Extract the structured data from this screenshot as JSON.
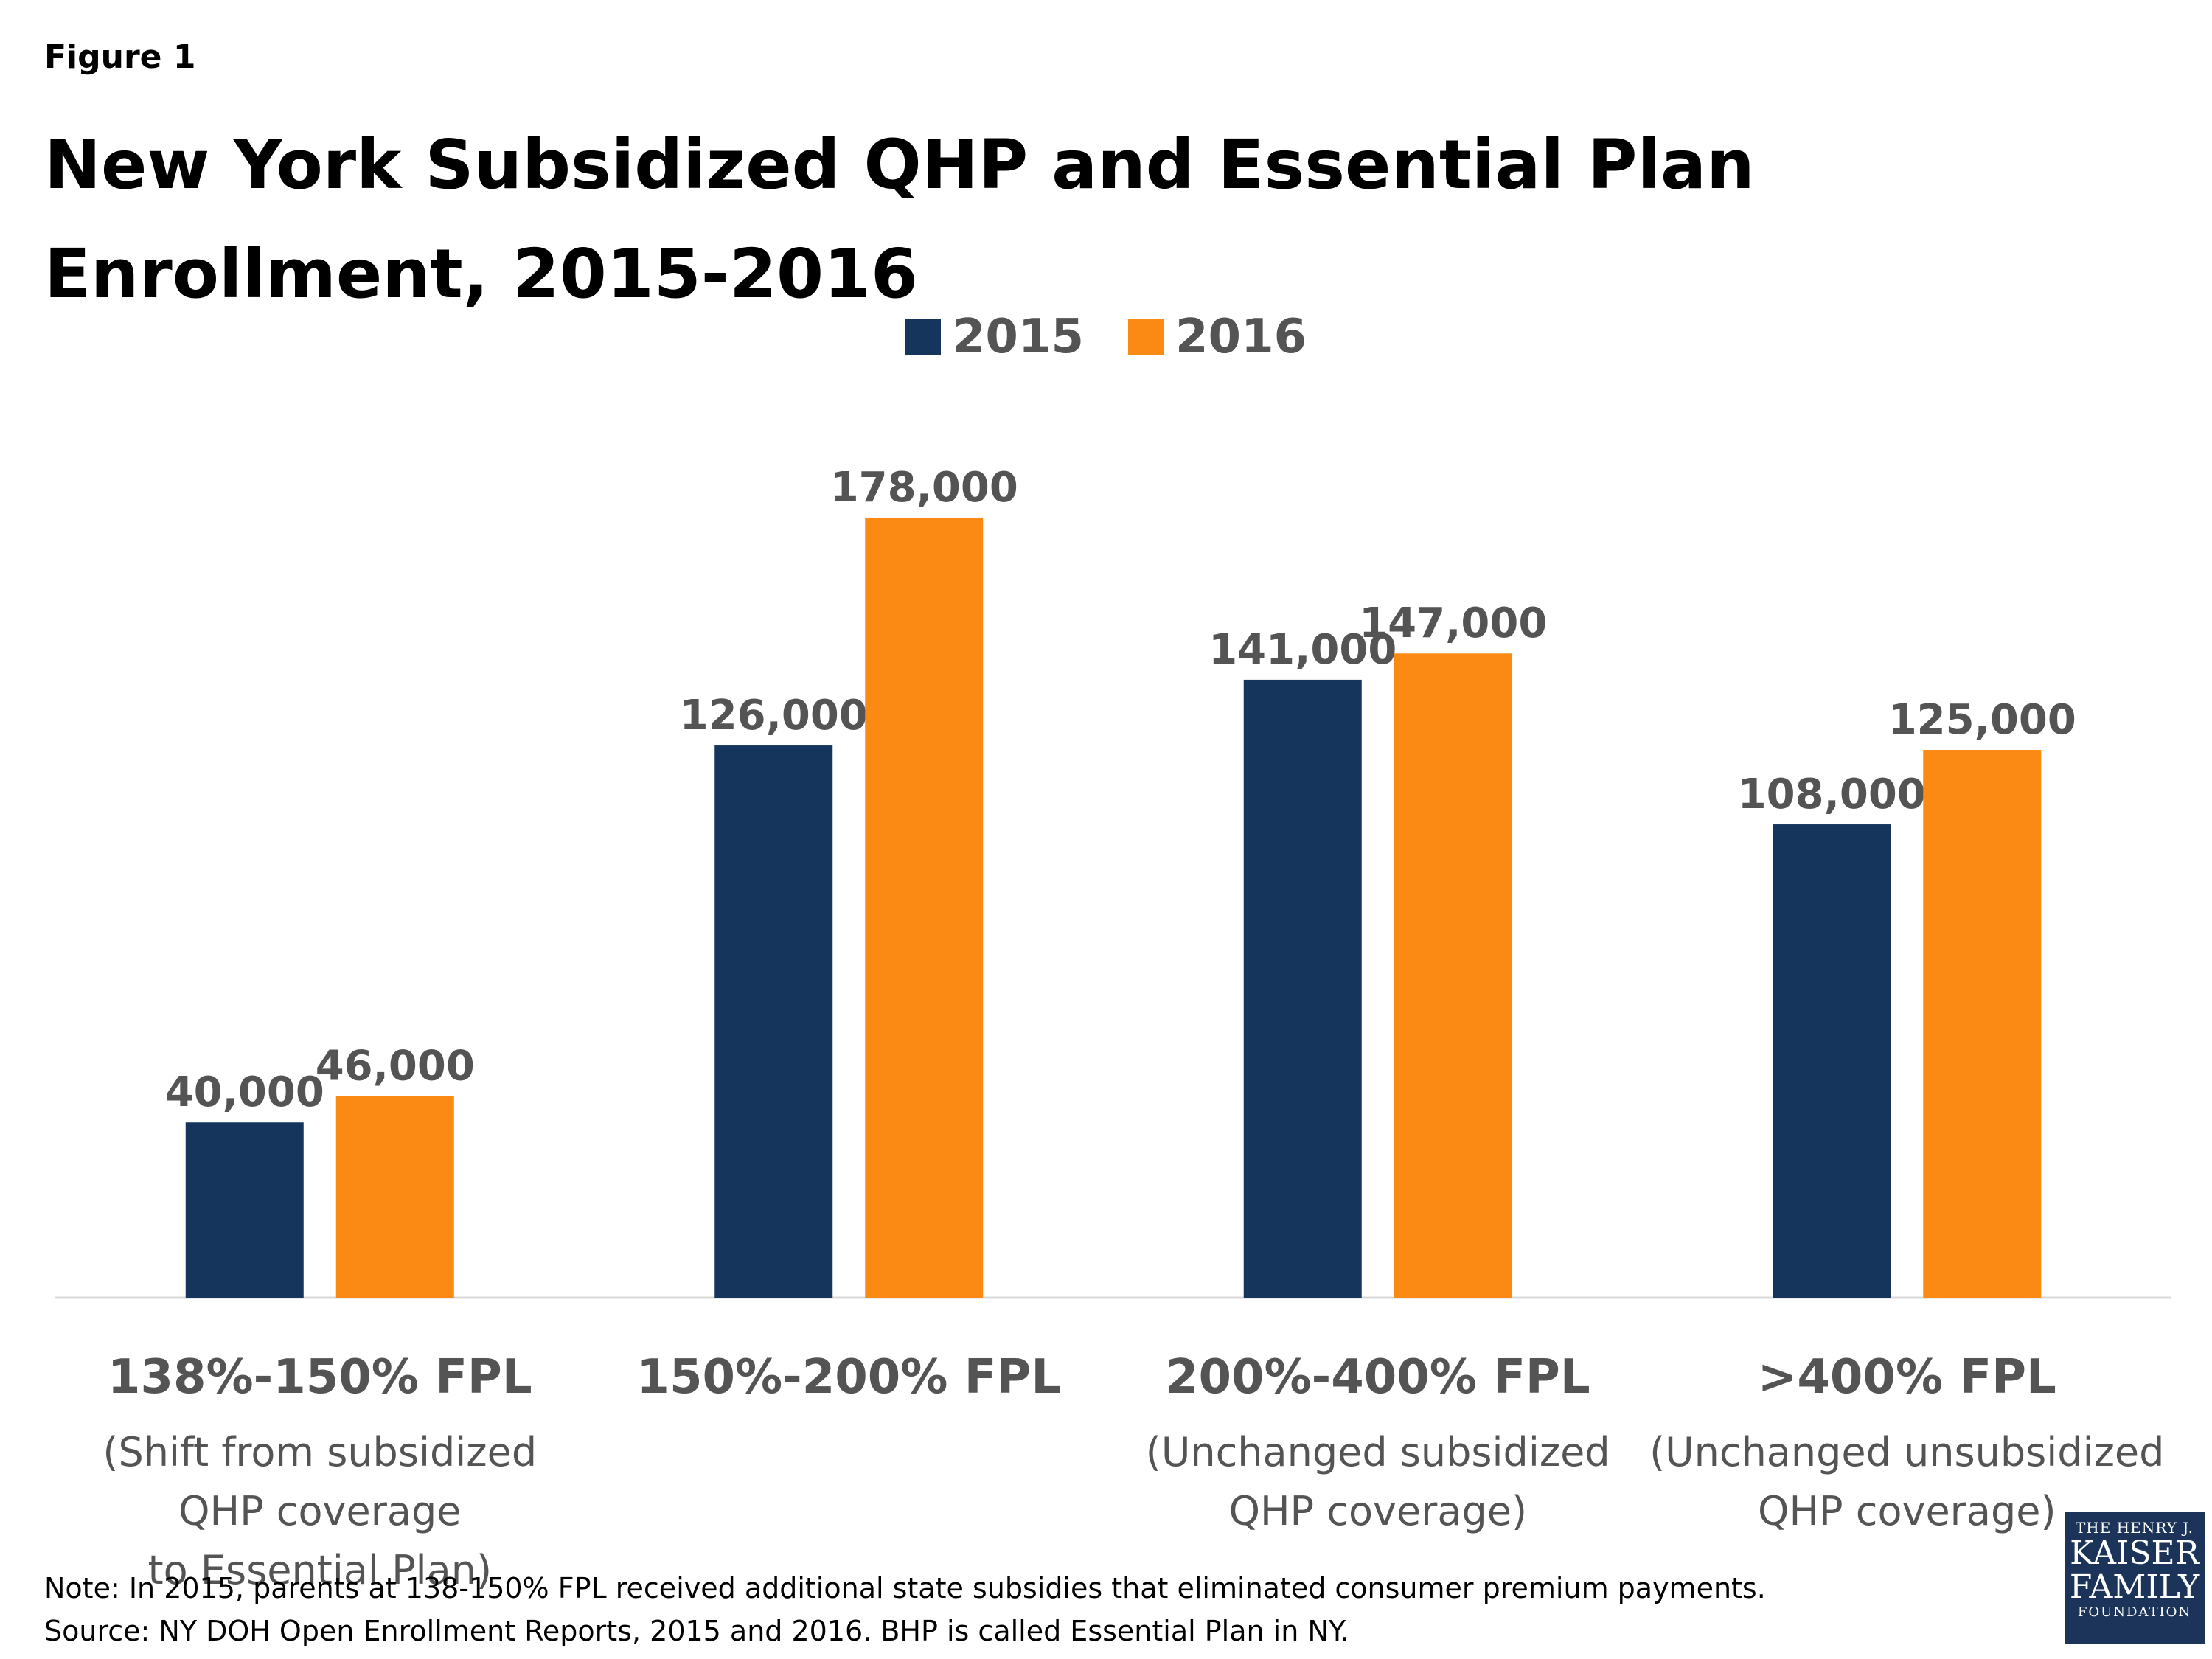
{
  "figure_label": "Figure 1",
  "title": "New York Subsidized QHP and Essential Plan Enrollment, 2015-2016",
  "colors": {
    "series_2015": "#15355c",
    "series_2016": "#fb8a14",
    "axis": "#d9d9d9",
    "label": "#545454"
  },
  "chart_data": {
    "type": "bar",
    "title": "New York Subsidized QHP and Essential Plan Enrollment, 2015-2016",
    "categories": [
      "138%-150% FPL",
      "150%-200% FPL",
      "200%-400% FPL",
      ">400% FPL"
    ],
    "subtitles": [
      [
        "(Shift from subsidized QHP coverage",
        "to Essential Plan)"
      ],
      [
        "",
        ""
      ],
      [
        "(Unchanged subsidized",
        "QHP coverage)"
      ],
      [
        "(Unchanged unsubsidized",
        "QHP coverage)"
      ]
    ],
    "series": [
      {
        "name": "2015",
        "values": [
          40000,
          126000,
          141000,
          108000
        ],
        "labels": [
          "40,000",
          "126,000",
          "141,000",
          "108,000"
        ]
      },
      {
        "name": "2016",
        "values": [
          46000,
          178000,
          147000,
          125000
        ],
        "labels": [
          "46,000",
          "178,000",
          "147,000",
          "125,000"
        ]
      }
    ],
    "ylim": [
      0,
      180000
    ],
    "legend": "top-center",
    "grid": false
  },
  "notes": {
    "note": "Note: In 2015, parents at 138-150% FPL received additional state subsidies that eliminated consumer premium payments.",
    "source": "Source: NY DOH Open Enrollment Reports, 2015 and 2016. BHP is called Essential Plan in NY."
  },
  "logo": {
    "line1": "THE HENRY J.",
    "line2": "KAISER",
    "line3": "FAMILY",
    "line4": "FOUNDATION"
  }
}
